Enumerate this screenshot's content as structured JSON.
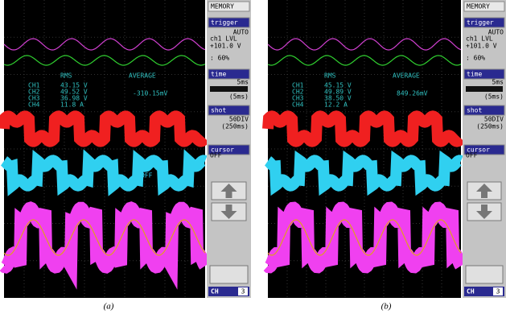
{
  "panels": [
    {
      "caption": "(a)",
      "readout": {
        "headers": [
          "RMS",
          "AVERAGE"
        ],
        "rows": [
          "CH1",
          "CH2",
          "CH3",
          "CH4"
        ],
        "values": [
          "43.15 V",
          "49.52 V",
          "36.98 V",
          "11.8 A"
        ],
        "average": "-310.15mV"
      },
      "marker": "OFF",
      "side": {
        "memory": "MEMORY",
        "trigger": "trigger",
        "mode": "AUTO",
        "level": "ch1  LVL",
        "volt": "+101.0 V",
        "percent": ":  60%",
        "time": "time",
        "time_value": "5ms",
        "time_sub": "(5ms)",
        "shot": "shot",
        "shot_value": "50DIV",
        "shot_sub": "(250ms)",
        "cursor": "cursor",
        "cursor_value": "OFF",
        "ch": "CH",
        "ch_num": "3"
      }
    },
    {
      "caption": "(b)",
      "readout": {
        "headers": [
          "RMS",
          "AVERAGE"
        ],
        "rows": [
          "CH1",
          "CH2",
          "CH3",
          "CH4"
        ],
        "values": [
          "45.15 V",
          "49.89 V",
          "38.50 V",
          "12.2 A"
        ],
        "average": "849.26mV"
      },
      "marker": "",
      "side": {
        "memory": "MEMORY",
        "trigger": "trigger",
        "mode": "AUTO",
        "level": "ch1  LVL",
        "volt": "+101.0 V",
        "percent": ":  60%",
        "time": "time",
        "time_value": "5ms",
        "time_sub": "(5ms)",
        "shot": "shot",
        "shot_value": "50DIV",
        "shot_sub": "(250ms)",
        "cursor": "cursor",
        "cursor_value": "OFF",
        "ch": "CH",
        "ch_num": "3"
      }
    }
  ]
}
